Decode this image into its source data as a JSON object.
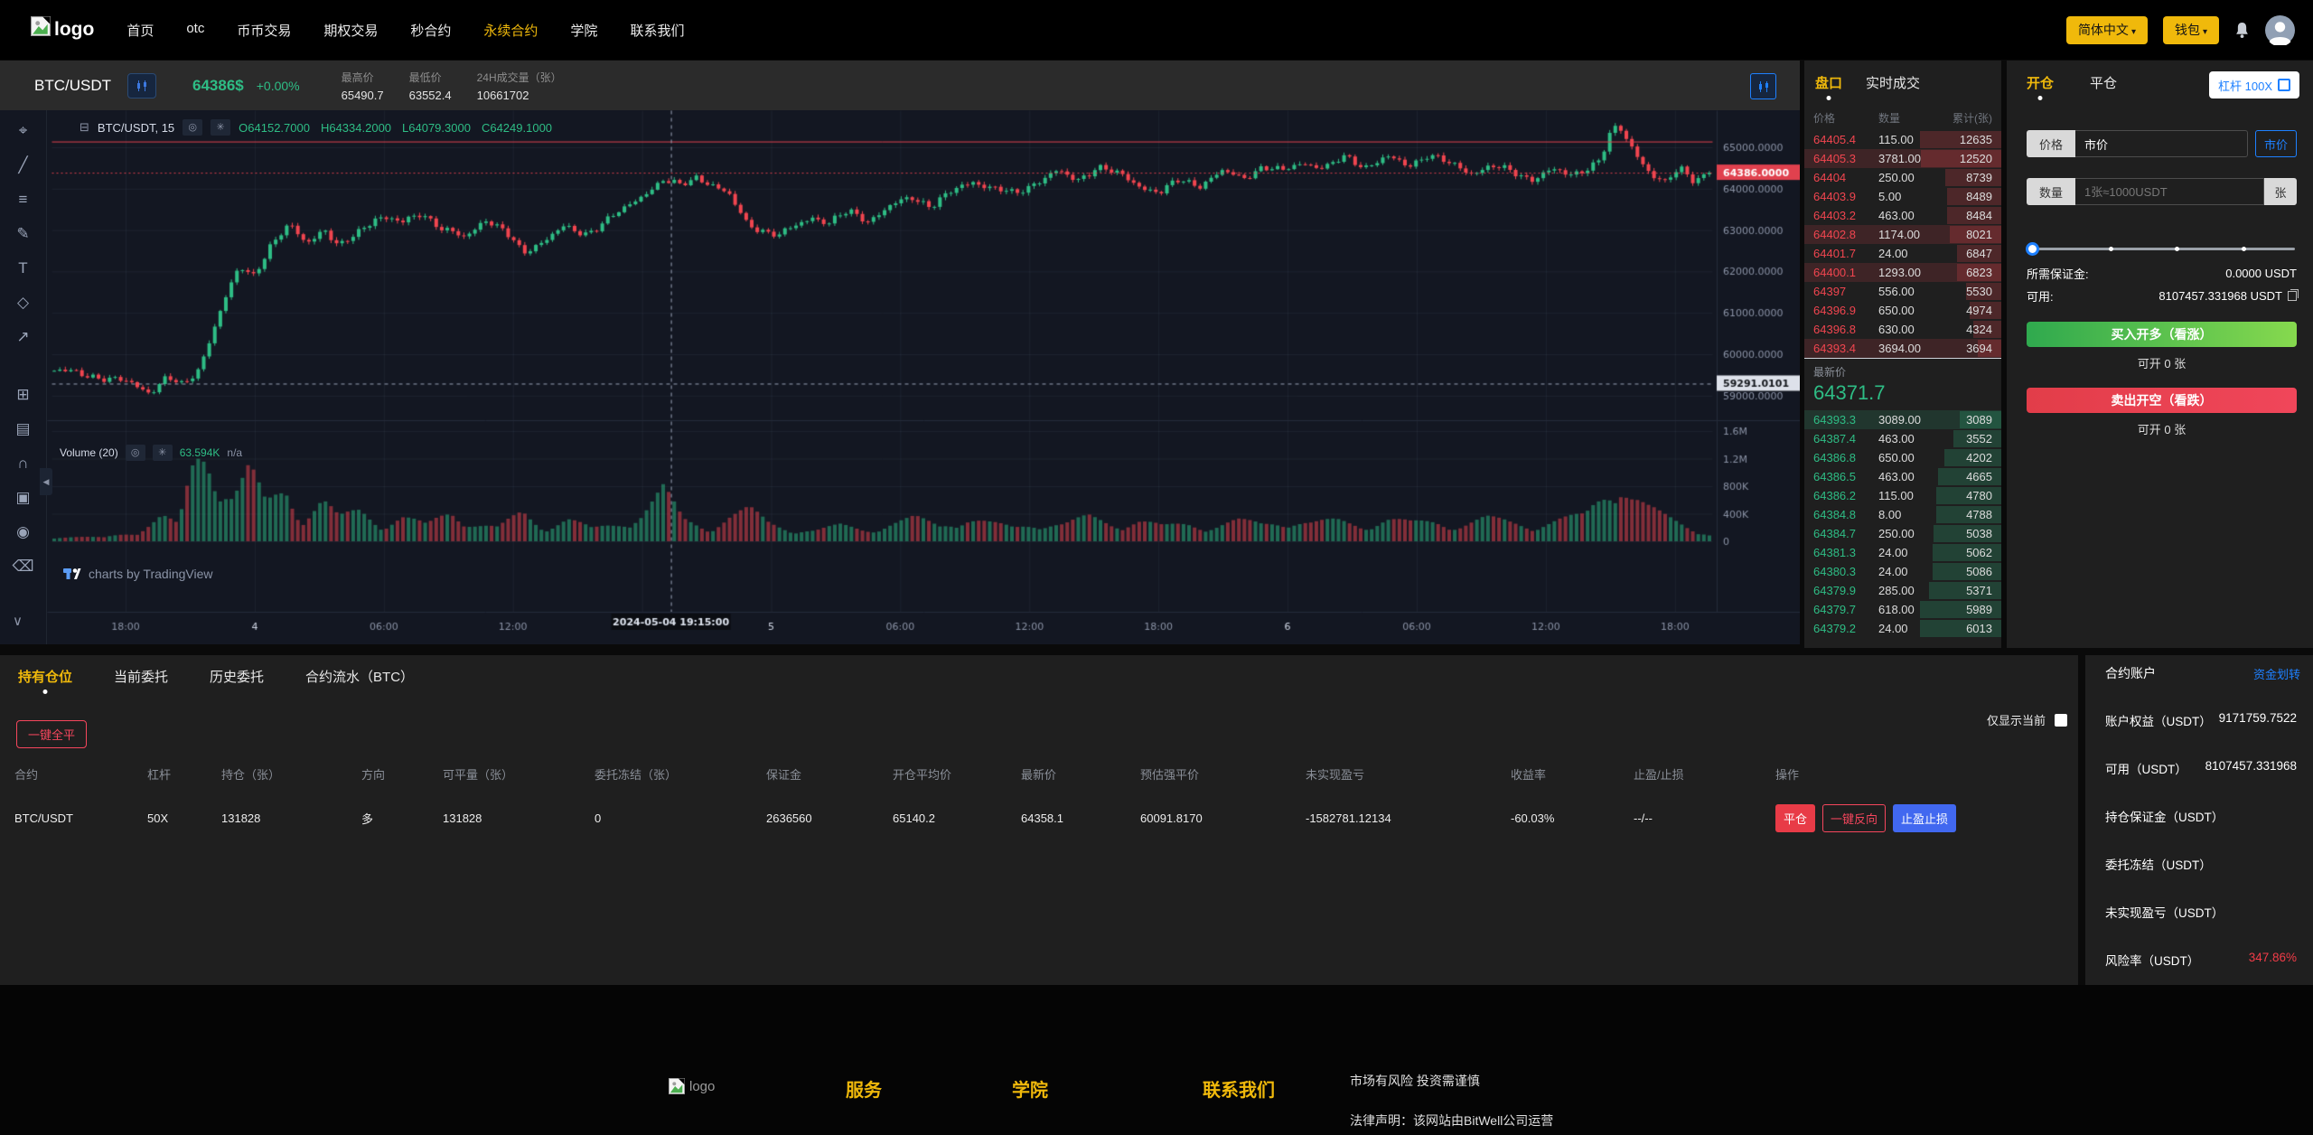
{
  "navbar": {
    "logo_text": "logo",
    "items": [
      {
        "id": "home",
        "label": "首页"
      },
      {
        "id": "otc",
        "label": "otc"
      },
      {
        "id": "spot",
        "label": "币币交易"
      },
      {
        "id": "options",
        "label": "期权交易"
      },
      {
        "id": "seconds",
        "label": "秒合约"
      },
      {
        "id": "perpetual",
        "label": "永续合约",
        "active": true
      },
      {
        "id": "academy",
        "label": "学院"
      },
      {
        "id": "contact",
        "label": "联系我们"
      }
    ],
    "lang_button": "简体中文",
    "wallet_button": "钱包"
  },
  "ticker": {
    "pair": "BTC/USDT",
    "price": "64386$",
    "change": "+0.00%",
    "stats": [
      {
        "label": "最高价",
        "value": "65490.7"
      },
      {
        "label": "最低价",
        "value": "63552.4"
      },
      {
        "label": "24H成交量（张）",
        "value": "10661702"
      }
    ]
  },
  "chart": {
    "legend_symbol": "BTC/USDT, 15",
    "ohlc": [
      "O64152.7000",
      "H64334.2000",
      "L64079.3000",
      "C64249.1000"
    ],
    "volume_title": "Volume (20)",
    "volume_value": "63.594K",
    "volume_na": "n/a",
    "tv_credit": "charts by TradingView",
    "toolbar_icons_top": [
      {
        "name": "crosshair-cursor-icon",
        "glyph": "⌖"
      },
      {
        "name": "trend-line-icon",
        "glyph": "╱"
      },
      {
        "name": "fib-retracement-icon",
        "glyph": "≡"
      },
      {
        "name": "brush-icon",
        "glyph": "✎"
      },
      {
        "name": "text-tool-icon",
        "glyph": "T"
      },
      {
        "name": "pattern-tool-icon",
        "glyph": "◇"
      },
      {
        "name": "forecast-tool-icon",
        "glyph": "↗"
      }
    ],
    "toolbar_icons_bottom": [
      {
        "name": "layout-grid-icon",
        "glyph": "⊞"
      },
      {
        "name": "templates-icon",
        "glyph": "▤"
      },
      {
        "name": "magnet-icon",
        "glyph": "∩"
      },
      {
        "name": "lock-icon",
        "glyph": "▣"
      },
      {
        "name": "hide-drawings-icon",
        "glyph": "◉"
      },
      {
        "name": "delete-drawings-icon",
        "glyph": "⌫"
      }
    ]
  },
  "chart_data": {
    "type": "candlestick",
    "symbol": "BTC/USDT",
    "interval": "15",
    "candle_count": 300,
    "up_color": "#2ebd85",
    "down_color": "#f1454f",
    "last_price": 64386.0,
    "last_price_label": "64386.0000",
    "red_line_price": 65140.2,
    "crosshair": {
      "price": 59291.0101,
      "price_label": "59291.0101",
      "time_label": "2024-05-04 19:15:00",
      "x_frac": 0.373
    },
    "price_ax": [
      {
        "v": 65000,
        "label": "65000.0000"
      },
      {
        "v": 64000,
        "label": "64000.0000"
      },
      {
        "v": 63000,
        "label": "63000.0000"
      },
      {
        "v": 62000,
        "label": "62000.0000"
      },
      {
        "v": 61000,
        "label": "61000.0000"
      },
      {
        "v": 60000,
        "label": "60000.0000"
      },
      {
        "v": 59000,
        "label": "59000.0000"
      }
    ],
    "volume_ax": [
      {
        "v": 1600,
        "label": "1.6M"
      },
      {
        "v": 1200,
        "label": "1.2M"
      },
      {
        "v": 800,
        "label": "800K"
      },
      {
        "v": 400,
        "label": "400K"
      },
      {
        "v": 0,
        "label": "0"
      }
    ],
    "time_ax": [
      {
        "t": "18:00"
      },
      {
        "t": "4",
        "major": true
      },
      {
        "t": "06:00"
      },
      {
        "t": "12:00"
      },
      {
        "t": "18:00",
        "hidden": true
      },
      {
        "t": "5",
        "major": true
      },
      {
        "t": "06:00"
      },
      {
        "t": "12:00"
      },
      {
        "t": "18:00"
      },
      {
        "t": "6",
        "major": true
      },
      {
        "t": "06:00"
      },
      {
        "t": "12:00"
      },
      {
        "t": "18:00"
      }
    ],
    "price_anchors": [
      [
        0.0,
        59600
      ],
      [
        0.025,
        59480
      ],
      [
        0.045,
        59300
      ],
      [
        0.058,
        59100
      ],
      [
        0.068,
        59450
      ],
      [
        0.078,
        59200
      ],
      [
        0.088,
        59700
      ],
      [
        0.095,
        60500
      ],
      [
        0.103,
        61300
      ],
      [
        0.112,
        62100
      ],
      [
        0.12,
        61900
      ],
      [
        0.13,
        62600
      ],
      [
        0.142,
        63100
      ],
      [
        0.152,
        62700
      ],
      [
        0.163,
        63050
      ],
      [
        0.172,
        62550
      ],
      [
        0.182,
        62900
      ],
      [
        0.195,
        63350
      ],
      [
        0.21,
        63150
      ],
      [
        0.222,
        63450
      ],
      [
        0.235,
        63000
      ],
      [
        0.248,
        62800
      ],
      [
        0.26,
        63300
      ],
      [
        0.272,
        62950
      ],
      [
        0.283,
        62450
      ],
      [
        0.295,
        62750
      ],
      [
        0.308,
        63050
      ],
      [
        0.32,
        62900
      ],
      [
        0.332,
        63200
      ],
      [
        0.345,
        63500
      ],
      [
        0.358,
        63950
      ],
      [
        0.368,
        64200
      ],
      [
        0.378,
        64050
      ],
      [
        0.388,
        64300
      ],
      [
        0.398,
        64100
      ],
      [
        0.408,
        63800
      ],
      [
        0.418,
        63200
      ],
      [
        0.428,
        63000
      ],
      [
        0.438,
        62850
      ],
      [
        0.448,
        63100
      ],
      [
        0.458,
        63350
      ],
      [
        0.468,
        63150
      ],
      [
        0.48,
        63450
      ],
      [
        0.492,
        63250
      ],
      [
        0.505,
        63550
      ],
      [
        0.518,
        63800
      ],
      [
        0.53,
        63600
      ],
      [
        0.542,
        63900
      ],
      [
        0.555,
        64200
      ],
      [
        0.568,
        64000
      ],
      [
        0.58,
        63850
      ],
      [
        0.592,
        64150
      ],
      [
        0.605,
        64400
      ],
      [
        0.618,
        64200
      ],
      [
        0.63,
        64550
      ],
      [
        0.642,
        64350
      ],
      [
        0.655,
        64100
      ],
      [
        0.668,
        63900
      ],
      [
        0.68,
        64200
      ],
      [
        0.692,
        64100
      ],
      [
        0.705,
        64400
      ],
      [
        0.718,
        64250
      ],
      [
        0.73,
        64550
      ],
      [
        0.742,
        64400
      ],
      [
        0.755,
        64650
      ],
      [
        0.768,
        64500
      ],
      [
        0.78,
        64750
      ],
      [
        0.792,
        64550
      ],
      [
        0.805,
        64750
      ],
      [
        0.818,
        64550
      ],
      [
        0.83,
        64850
      ],
      [
        0.842,
        64600
      ],
      [
        0.855,
        64400
      ],
      [
        0.868,
        64550
      ],
      [
        0.88,
        64400
      ],
      [
        0.892,
        64250
      ],
      [
        0.905,
        64450
      ],
      [
        0.915,
        64300
      ],
      [
        0.925,
        64500
      ],
      [
        0.934,
        64700
      ],
      [
        0.94,
        65300
      ],
      [
        0.945,
        65480
      ],
      [
        0.95,
        65200
      ],
      [
        0.957,
        64800
      ],
      [
        0.965,
        64350
      ],
      [
        0.973,
        64100
      ],
      [
        0.982,
        64500
      ],
      [
        0.99,
        64250
      ],
      [
        1.0,
        64386
      ]
    ],
    "volume_anchors": [
      [
        0.0,
        80
      ],
      [
        0.03,
        60
      ],
      [
        0.05,
        180
      ],
      [
        0.065,
        420
      ],
      [
        0.075,
        260
      ],
      [
        0.085,
        1350
      ],
      [
        0.092,
        1550
      ],
      [
        0.1,
        1100
      ],
      [
        0.108,
        800
      ],
      [
        0.118,
        1200
      ],
      [
        0.128,
        600
      ],
      [
        0.14,
        900
      ],
      [
        0.15,
        420
      ],
      [
        0.162,
        700
      ],
      [
        0.172,
        380
      ],
      [
        0.185,
        520
      ],
      [
        0.198,
        300
      ],
      [
        0.21,
        420
      ],
      [
        0.225,
        260
      ],
      [
        0.24,
        520
      ],
      [
        0.255,
        300
      ],
      [
        0.268,
        220
      ],
      [
        0.283,
        480
      ],
      [
        0.295,
        260
      ],
      [
        0.31,
        380
      ],
      [
        0.325,
        200
      ],
      [
        0.34,
        300
      ],
      [
        0.355,
        480
      ],
      [
        0.368,
        850
      ],
      [
        0.38,
        360
      ],
      [
        0.395,
        240
      ],
      [
        0.408,
        420
      ],
      [
        0.42,
        520
      ],
      [
        0.432,
        300
      ],
      [
        0.445,
        220
      ],
      [
        0.46,
        180
      ],
      [
        0.475,
        260
      ],
      [
        0.49,
        200
      ],
      [
        0.505,
        300
      ],
      [
        0.52,
        380
      ],
      [
        0.535,
        260
      ],
      [
        0.55,
        420
      ],
      [
        0.565,
        300
      ],
      [
        0.58,
        220
      ],
      [
        0.595,
        340
      ],
      [
        0.61,
        280
      ],
      [
        0.625,
        400
      ],
      [
        0.64,
        300
      ],
      [
        0.655,
        360
      ],
      [
        0.67,
        240
      ],
      [
        0.685,
        300
      ],
      [
        0.7,
        260
      ],
      [
        0.715,
        340
      ],
      [
        0.73,
        280
      ],
      [
        0.745,
        380
      ],
      [
        0.76,
        300
      ],
      [
        0.775,
        340
      ],
      [
        0.79,
        280
      ],
      [
        0.805,
        380
      ],
      [
        0.82,
        300
      ],
      [
        0.835,
        340
      ],
      [
        0.85,
        280
      ],
      [
        0.865,
        380
      ],
      [
        0.88,
        320
      ],
      [
        0.895,
        280
      ],
      [
        0.91,
        360
      ],
      [
        0.925,
        420
      ],
      [
        0.938,
        900
      ],
      [
        0.945,
        1150
      ],
      [
        0.952,
        800
      ],
      [
        0.962,
        560
      ],
      [
        0.972,
        420
      ],
      [
        0.982,
        320
      ],
      [
        0.992,
        220
      ],
      [
        1.0,
        120
      ]
    ]
  },
  "orderbook": {
    "tabs": [
      "盘口",
      "实时成交"
    ],
    "headers": [
      "价格",
      "数量",
      "累计(张)"
    ],
    "asks": [
      {
        "p": "64405.4",
        "q": "115.00",
        "c": "12635"
      },
      {
        "p": "64405.3",
        "q": "3781.00",
        "c": "12520",
        "f": true
      },
      {
        "p": "64404",
        "q": "250.00",
        "c": "8739"
      },
      {
        "p": "64403.9",
        "q": "5.00",
        "c": "8489"
      },
      {
        "p": "64403.2",
        "q": "463.00",
        "c": "8484"
      },
      {
        "p": "64402.8",
        "q": "1174.00",
        "c": "8021",
        "f": true
      },
      {
        "p": "64401.7",
        "q": "24.00",
        "c": "6847"
      },
      {
        "p": "64400.1",
        "q": "1293.00",
        "c": "6823",
        "f": true
      },
      {
        "p": "64397",
        "q": "556.00",
        "c": "5530"
      },
      {
        "p": "64396.9",
        "q": "650.00",
        "c": "4974"
      },
      {
        "p": "64396.8",
        "q": "630.00",
        "c": "4324"
      },
      {
        "p": "64393.4",
        "q": "3694.00",
        "c": "3694",
        "f": true
      }
    ],
    "last_price_label": "最新价",
    "last_price": "64371.7",
    "bids": [
      {
        "p": "64393.3",
        "q": "3089.00",
        "c": "3089",
        "f": true
      },
      {
        "p": "64387.4",
        "q": "463.00",
        "c": "3552"
      },
      {
        "p": "64386.8",
        "q": "650.00",
        "c": "4202"
      },
      {
        "p": "64386.5",
        "q": "463.00",
        "c": "4665"
      },
      {
        "p": "64386.2",
        "q": "115.00",
        "c": "4780"
      },
      {
        "p": "64384.8",
        "q": "8.00",
        "c": "4788"
      },
      {
        "p": "64384.7",
        "q": "250.00",
        "c": "5038"
      },
      {
        "p": "64381.3",
        "q": "24.00",
        "c": "5062"
      },
      {
        "p": "64380.3",
        "q": "24.00",
        "c": "5086"
      },
      {
        "p": "64379.9",
        "q": "285.00",
        "c": "5371"
      },
      {
        "p": "64379.7",
        "q": "618.00",
        "c": "5989"
      },
      {
        "p": "64379.2",
        "q": "24.00",
        "c": "6013"
      }
    ]
  },
  "trade_panel": {
    "tabs": [
      "开仓",
      "平仓"
    ],
    "leverage_button": "杠杆 100X",
    "price_label": "价格",
    "price_value": "市价",
    "market_button": "市价",
    "amount_label": "数量",
    "amount_placeholder": "1张≈1000USDT",
    "unit": "张",
    "margin_label": "所需保证金:",
    "margin_value": "0.0000 USDT",
    "available_label": "可用:",
    "available_value": "8107457.331968 USDT",
    "buy_button": "买入开多（看涨）",
    "buy_hint": "可开 0 张",
    "sell_button": "卖出开空（看跌）",
    "sell_hint": "可开 0 张"
  },
  "positions": {
    "tabs": [
      {
        "id": "holding",
        "label": "持有仓位",
        "active": true
      },
      {
        "id": "current-orders",
        "label": "当前委托"
      },
      {
        "id": "history-orders",
        "label": "历史委托"
      },
      {
        "id": "contract-flow",
        "label": "合约流水（BTC）"
      }
    ],
    "close_all_button": "一键全平",
    "only_current_label": "仅显示当前",
    "headers": [
      "合约",
      "杠杆",
      "持仓（张）",
      "方向",
      "可平量（张）",
      "委托冻结（张）",
      "保证金",
      "开仓平均价",
      "最新价",
      "预估强平价",
      "未实现盈亏",
      "收益率",
      "止盈/止损",
      "操作"
    ],
    "row": [
      "BTC/USDT",
      "50X",
      "131828",
      "多",
      "131828",
      "0",
      "2636560",
      "65140.2",
      "64358.1",
      "60091.8170",
      "-1582781.12134",
      "-60.03%",
      "--/--"
    ],
    "actions": [
      "平仓",
      "一键反向",
      "止盈止损"
    ]
  },
  "account": {
    "title": "合约账户",
    "transfer_link": "资金划转",
    "rows": [
      {
        "label": "账户权益（USDT）",
        "value": "9171759.7522"
      },
      {
        "label": "可用（USDT）",
        "value": "8107457.331968"
      },
      {
        "label": "持仓保证金（USDT）",
        "value": ""
      },
      {
        "label": "委托冻结（USDT）",
        "value": ""
      },
      {
        "label": "未实现盈亏（USDT）",
        "value": ""
      },
      {
        "label": "风险率（USDT）",
        "value": "347.86%",
        "risk": true
      }
    ]
  },
  "footer": {
    "logo_text": "logo",
    "columns": [
      "服务",
      "学院",
      "联系我们"
    ],
    "risk_text": "市场有风险 投资需谨慎",
    "legal_text": "法律声明：该网站由BitWell公司运营"
  },
  "colors": {
    "accent_yellow": "#f0b90b",
    "up_green": "#2ebd85",
    "down_red": "#f1454f",
    "link_blue": "#1e80ff",
    "risk_red": "#f23c48"
  }
}
